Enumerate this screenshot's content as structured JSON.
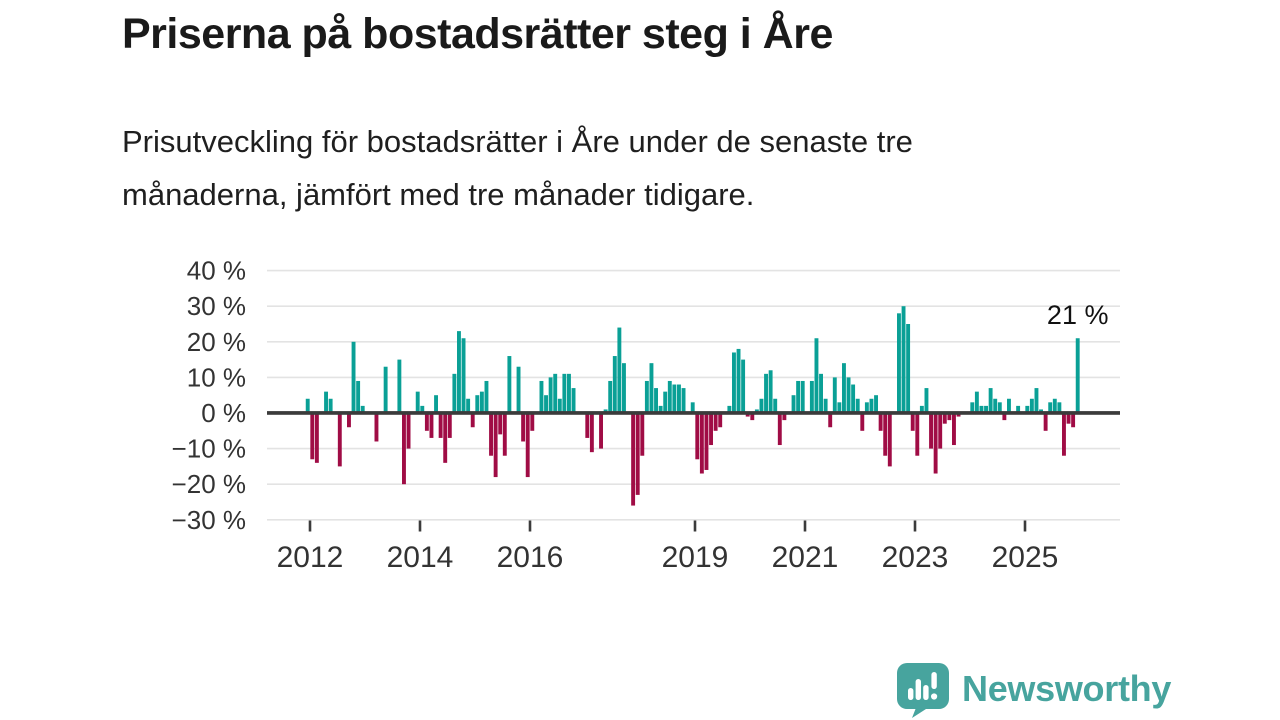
{
  "title": "Priserna på bostadsrätter steg i Åre",
  "subtitle": "Prisutveckling för bostadsrätter i Åre under de senaste tre\nmånaderna, jämfört med tre månader tidigare.",
  "branding": {
    "name": "Newsworthy"
  },
  "colors": {
    "bar_positive": "#0aa096",
    "bar_negative": "#a00c45",
    "brand_teal": "#47a49e",
    "grid_line": "#e3e3e3",
    "zero_line": "#3b3b3b",
    "title_text": "#1a1a1a",
    "axis_text": "#333333",
    "annotation_text": "#111111"
  },
  "chart_data": {
    "type": "bar",
    "title": "Priserna på bostadsrätter steg i Åre",
    "xlabel": "",
    "ylabel": "",
    "unit": "%",
    "ylim": [
      -30,
      40
    ],
    "grid": true,
    "y_tick_values": [
      40,
      30,
      20,
      10,
      0,
      -10,
      -20,
      -30
    ],
    "y_tick_labels": [
      "40 %",
      "30 %",
      "20 %",
      "10 %",
      "0 %",
      "−10 %",
      "−20 %",
      "−30 %"
    ],
    "x_ticks": [
      "2012",
      "2014",
      "2016",
      "2019",
      "2021",
      "2023",
      "2025"
    ],
    "annotation": {
      "label": "21 %",
      "date": "2025-12",
      "value": 21
    },
    "points": [
      [
        "2011-12",
        4
      ],
      [
        "2012-01",
        -13
      ],
      [
        "2012-02",
        -14
      ],
      [
        "2012-04",
        6
      ],
      [
        "2012-05",
        4
      ],
      [
        "2012-07",
        -15
      ],
      [
        "2012-09",
        -4
      ],
      [
        "2012-10",
        20
      ],
      [
        "2012-11",
        9
      ],
      [
        "2012-12",
        2
      ],
      [
        "2013-03",
        -8
      ],
      [
        "2013-05",
        13
      ],
      [
        "2013-08",
        15
      ],
      [
        "2013-09",
        -20
      ],
      [
        "2013-10",
        -10
      ],
      [
        "2013-12",
        6
      ],
      [
        "2014-01",
        2
      ],
      [
        "2014-02",
        -5
      ],
      [
        "2014-03",
        -7
      ],
      [
        "2014-04",
        5
      ],
      [
        "2014-05",
        -7
      ],
      [
        "2014-06",
        -14
      ],
      [
        "2014-07",
        -7
      ],
      [
        "2014-08",
        11
      ],
      [
        "2014-09",
        23
      ],
      [
        "2014-10",
        21
      ],
      [
        "2014-11",
        4
      ],
      [
        "2014-12",
        -4
      ],
      [
        "2015-01",
        5
      ],
      [
        "2015-02",
        6
      ],
      [
        "2015-03",
        9
      ],
      [
        "2015-04",
        -12
      ],
      [
        "2015-05",
        -18
      ],
      [
        "2015-06",
        -6
      ],
      [
        "2015-07",
        -12
      ],
      [
        "2015-08",
        16
      ],
      [
        "2015-10",
        13
      ],
      [
        "2015-11",
        -8
      ],
      [
        "2015-12",
        -18
      ],
      [
        "2016-01",
        -5
      ],
      [
        "2016-03",
        9
      ],
      [
        "2016-04",
        5
      ],
      [
        "2016-05",
        10
      ],
      [
        "2016-06",
        11
      ],
      [
        "2016-07",
        4
      ],
      [
        "2016-08",
        11
      ],
      [
        "2016-09",
        11
      ],
      [
        "2016-10",
        7
      ],
      [
        "2017-01",
        -7
      ],
      [
        "2017-02",
        -11
      ],
      [
        "2017-04",
        -10
      ],
      [
        "2017-05",
        1
      ],
      [
        "2017-06",
        9
      ],
      [
        "2017-07",
        16
      ],
      [
        "2017-08",
        24
      ],
      [
        "2017-09",
        14
      ],
      [
        "2017-11",
        -26
      ],
      [
        "2017-12",
        -23
      ],
      [
        "2018-01",
        -12
      ],
      [
        "2018-02",
        9
      ],
      [
        "2018-03",
        14
      ],
      [
        "2018-04",
        7
      ],
      [
        "2018-05",
        2
      ],
      [
        "2018-06",
        6
      ],
      [
        "2018-07",
        9
      ],
      [
        "2018-08",
        8
      ],
      [
        "2018-09",
        8
      ],
      [
        "2018-10",
        7
      ],
      [
        "2018-12",
        3
      ],
      [
        "2019-01",
        -13
      ],
      [
        "2019-02",
        -17
      ],
      [
        "2019-03",
        -16
      ],
      [
        "2019-04",
        -9
      ],
      [
        "2019-05",
        -5
      ],
      [
        "2019-06",
        -4
      ],
      [
        "2019-08",
        2
      ],
      [
        "2019-09",
        17
      ],
      [
        "2019-10",
        18
      ],
      [
        "2019-11",
        15
      ],
      [
        "2019-12",
        -1
      ],
      [
        "2020-01",
        -2
      ],
      [
        "2020-02",
        1
      ],
      [
        "2020-03",
        4
      ],
      [
        "2020-04",
        11
      ],
      [
        "2020-05",
        12
      ],
      [
        "2020-06",
        4
      ],
      [
        "2020-07",
        -9
      ],
      [
        "2020-08",
        -2
      ],
      [
        "2020-10",
        5
      ],
      [
        "2020-11",
        9
      ],
      [
        "2020-12",
        9
      ],
      [
        "2021-02",
        9
      ],
      [
        "2021-03",
        21
      ],
      [
        "2021-04",
        11
      ],
      [
        "2021-05",
        4
      ],
      [
        "2021-06",
        -4
      ],
      [
        "2021-07",
        10
      ],
      [
        "2021-08",
        3
      ],
      [
        "2021-09",
        14
      ],
      [
        "2021-10",
        10
      ],
      [
        "2021-11",
        8
      ],
      [
        "2021-12",
        4
      ],
      [
        "2022-01",
        -5
      ],
      [
        "2022-02",
        3
      ],
      [
        "2022-03",
        4
      ],
      [
        "2022-04",
        5
      ],
      [
        "2022-05",
        -5
      ],
      [
        "2022-06",
        -12
      ],
      [
        "2022-07",
        -15
      ],
      [
        "2022-09",
        28
      ],
      [
        "2022-10",
        30
      ],
      [
        "2022-11",
        25
      ],
      [
        "2022-12",
        -5
      ],
      [
        "2023-01",
        -12
      ],
      [
        "2023-02",
        2
      ],
      [
        "2023-03",
        7
      ],
      [
        "2023-04",
        -10
      ],
      [
        "2023-05",
        -17
      ],
      [
        "2023-06",
        -10
      ],
      [
        "2023-07",
        -3
      ],
      [
        "2023-08",
        -2
      ],
      [
        "2023-09",
        -9
      ],
      [
        "2023-10",
        -1
      ],
      [
        "2024-01",
        3
      ],
      [
        "2024-02",
        6
      ],
      [
        "2024-03",
        2
      ],
      [
        "2024-04",
        2
      ],
      [
        "2024-05",
        7
      ],
      [
        "2024-06",
        4
      ],
      [
        "2024-07",
        3
      ],
      [
        "2024-08",
        -2
      ],
      [
        "2024-09",
        4
      ],
      [
        "2024-11",
        2
      ],
      [
        "2025-01",
        2
      ],
      [
        "2025-02",
        4
      ],
      [
        "2025-03",
        7
      ],
      [
        "2025-04",
        1
      ],
      [
        "2025-05",
        -5
      ],
      [
        "2025-06",
        3
      ],
      [
        "2025-07",
        4
      ],
      [
        "2025-08",
        3
      ],
      [
        "2025-09",
        -12
      ],
      [
        "2025-10",
        -3
      ],
      [
        "2025-11",
        -4
      ],
      [
        "2025-12",
        21
      ]
    ]
  }
}
